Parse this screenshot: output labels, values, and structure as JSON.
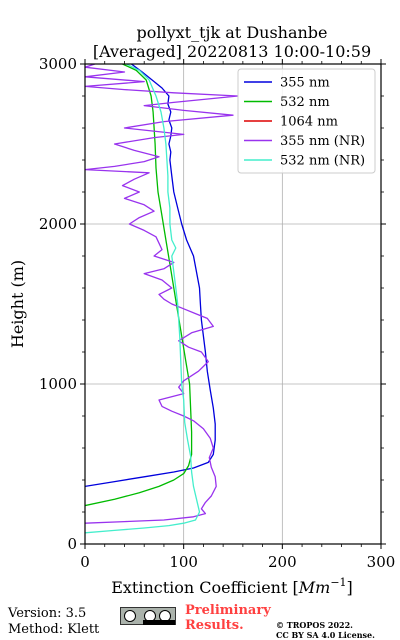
{
  "chart_data": {
    "type": "line",
    "title": [
      "pollyxt_tjk at Dushanbe",
      "[Averaged] 20220813 10:00-10:59"
    ],
    "xlabel": "Extinction Coefficient [Mm⁻¹]",
    "ylabel": "Height (m)",
    "xlim": [
      0,
      300
    ],
    "ylim": [
      0,
      3000
    ],
    "xticks": [
      "0",
      "100",
      "200",
      "300"
    ],
    "yticks": [
      "0",
      "1000",
      "2000",
      "3000"
    ],
    "grid": true,
    "legend_position": "top-right",
    "series": [
      {
        "name": "355 nm",
        "color": "#0000dd",
        "points": [
          [
            0,
            360
          ],
          [
            30,
            390
          ],
          [
            60,
            420
          ],
          [
            90,
            450
          ],
          [
            110,
            475
          ],
          [
            125,
            510
          ],
          [
            130,
            560
          ],
          [
            132,
            650
          ],
          [
            132,
            750
          ],
          [
            130,
            850
          ],
          [
            127,
            960
          ],
          [
            124,
            1080
          ],
          [
            122,
            1200
          ],
          [
            120,
            1300
          ],
          [
            118,
            1400
          ],
          [
            117,
            1500
          ],
          [
            116,
            1600
          ],
          [
            113,
            1700
          ],
          [
            110,
            1800
          ],
          [
            103,
            1900
          ],
          [
            98,
            2000
          ],
          [
            94,
            2100
          ],
          [
            90,
            2200
          ],
          [
            88,
            2300
          ],
          [
            86,
            2400
          ],
          [
            87,
            2450
          ],
          [
            85,
            2500
          ],
          [
            87,
            2550
          ],
          [
            88,
            2600
          ],
          [
            85,
            2650
          ],
          [
            87,
            2700
          ],
          [
            84,
            2750
          ],
          [
            85,
            2800
          ],
          [
            78,
            2850
          ],
          [
            68,
            2900
          ],
          [
            58,
            2950
          ],
          [
            47,
            3000
          ]
        ]
      },
      {
        "name": "532 nm",
        "color": "#00bb00",
        "points": [
          [
            0,
            240
          ],
          [
            30,
            280
          ],
          [
            55,
            320
          ],
          [
            75,
            360
          ],
          [
            90,
            400
          ],
          [
            100,
            440
          ],
          [
            105,
            490
          ],
          [
            108,
            560
          ],
          [
            108,
            700
          ],
          [
            107,
            850
          ],
          [
            106,
            1000
          ],
          [
            102,
            1150
          ],
          [
            98,
            1300
          ],
          [
            94,
            1450
          ],
          [
            90,
            1600
          ],
          [
            86,
            1750
          ],
          [
            82,
            1900
          ],
          [
            78,
            2050
          ],
          [
            74,
            2200
          ],
          [
            72,
            2350
          ],
          [
            71,
            2500
          ],
          [
            70,
            2600
          ],
          [
            69,
            2700
          ],
          [
            67,
            2800
          ],
          [
            62,
            2900
          ],
          [
            52,
            2960
          ],
          [
            38,
            3000
          ]
        ]
      },
      {
        "name": "1064 nm",
        "color": "#dd0000",
        "points": []
      },
      {
        "name": "355 nm (NR)",
        "color": "#9933ee",
        "points": [
          [
            0,
            130
          ],
          [
            40,
            140
          ],
          [
            80,
            150
          ],
          [
            110,
            170
          ],
          [
            122,
            190
          ],
          [
            118,
            220
          ],
          [
            122,
            260
          ],
          [
            128,
            300
          ],
          [
            133,
            360
          ],
          [
            132,
            420
          ],
          [
            128,
            480
          ],
          [
            126,
            540
          ],
          [
            130,
            600
          ],
          [
            127,
            660
          ],
          [
            120,
            720
          ],
          [
            110,
            770
          ],
          [
            100,
            800
          ],
          [
            88,
            830
          ],
          [
            78,
            860
          ],
          [
            75,
            900
          ],
          [
            100,
            940
          ],
          [
            95,
            980
          ],
          [
            100,
            1020
          ],
          [
            115,
            1080
          ],
          [
            125,
            1140
          ],
          [
            118,
            1200
          ],
          [
            105,
            1230
          ],
          [
            95,
            1270
          ],
          [
            108,
            1320
          ],
          [
            130,
            1360
          ],
          [
            124,
            1410
          ],
          [
            112,
            1440
          ],
          [
            100,
            1470
          ],
          [
            88,
            1500
          ],
          [
            80,
            1530
          ],
          [
            75,
            1560
          ],
          [
            88,
            1600
          ],
          [
            78,
            1650
          ],
          [
            60,
            1690
          ],
          [
            80,
            1720
          ],
          [
            90,
            1760
          ],
          [
            70,
            1800
          ],
          [
            78,
            1840
          ],
          [
            75,
            1880
          ],
          [
            72,
            1920
          ],
          [
            60,
            1960
          ],
          [
            45,
            2000
          ],
          [
            55,
            2040
          ],
          [
            70,
            2080
          ],
          [
            60,
            2120
          ],
          [
            40,
            2160
          ],
          [
            55,
            2200
          ],
          [
            38,
            2240
          ],
          [
            50,
            2280
          ],
          [
            65,
            2320
          ],
          [
            0,
            2340
          ],
          [
            30,
            2360
          ],
          [
            60,
            2390
          ],
          [
            75,
            2420
          ],
          [
            50,
            2460
          ],
          [
            30,
            2500
          ],
          [
            70,
            2540
          ],
          [
            100,
            2560
          ],
          [
            40,
            2600
          ],
          [
            80,
            2640
          ],
          [
            150,
            2680
          ],
          [
            100,
            2710
          ],
          [
            60,
            2740
          ],
          [
            90,
            2760
          ],
          [
            155,
            2800
          ],
          [
            90,
            2820
          ],
          [
            40,
            2840
          ],
          [
            0,
            2860
          ],
          [
            60,
            2890
          ],
          [
            0,
            2920
          ],
          [
            40,
            2950
          ],
          [
            0,
            2980
          ],
          [
            10,
            3000
          ]
        ]
      },
      {
        "name": "532 nm (NR)",
        "color": "#44eecc",
        "points": [
          [
            0,
            70
          ],
          [
            30,
            85
          ],
          [
            60,
            100
          ],
          [
            85,
            115
          ],
          [
            100,
            130
          ],
          [
            112,
            150
          ],
          [
            116,
            200
          ],
          [
            113,
            280
          ],
          [
            110,
            360
          ],
          [
            108,
            450
          ],
          [
            107,
            550
          ],
          [
            104,
            650
          ],
          [
            101,
            760
          ],
          [
            100,
            900
          ],
          [
            98,
            1000
          ],
          [
            97,
            1150
          ],
          [
            96,
            1300
          ],
          [
            95,
            1400
          ],
          [
            94,
            1500
          ],
          [
            92,
            1600
          ],
          [
            90,
            1700
          ],
          [
            88,
            1800
          ],
          [
            92,
            1850
          ],
          [
            88,
            1900
          ],
          [
            86,
            2000
          ],
          [
            86,
            2100
          ],
          [
            84,
            2200
          ],
          [
            84,
            2300
          ],
          [
            83,
            2400
          ],
          [
            82,
            2500
          ],
          [
            80,
            2600
          ],
          [
            77,
            2700
          ],
          [
            72,
            2800
          ],
          [
            65,
            2900
          ],
          [
            55,
            2960
          ],
          [
            42,
            3000
          ]
        ]
      }
    ]
  },
  "footer": {
    "version": "Version: 3.5",
    "method": "Method: Klett",
    "preliminary": "Preliminary Results.",
    "copyright_line1": "© TROPOS 2022.",
    "copyright_line2": "CC BY SA 4.0 License."
  }
}
